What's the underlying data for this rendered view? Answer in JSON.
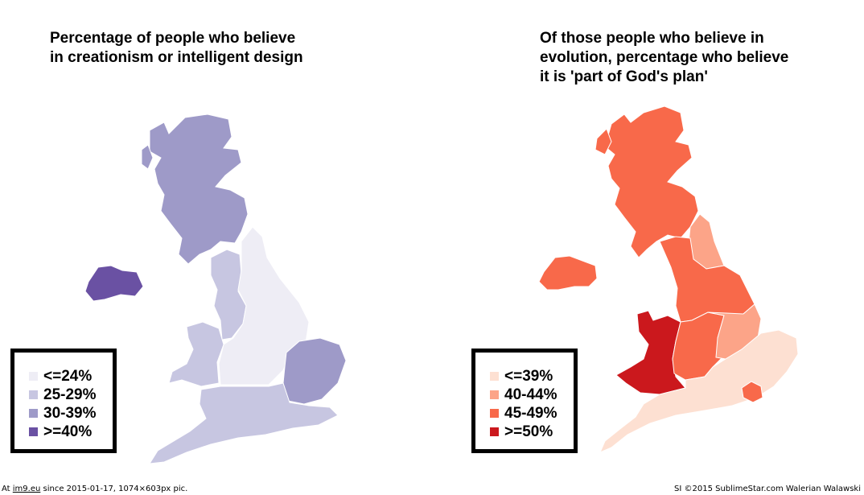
{
  "left_map": {
    "title": "Percentage of people who believe\nin creationism or intelligent design",
    "legend": [
      {
        "label": "<=24%",
        "color": "#eeedf5"
      },
      {
        "label": "25-29%",
        "color": "#c7c6e1"
      },
      {
        "label": "30-39%",
        "color": "#9e9ac8"
      },
      {
        "label": ">=40%",
        "color": "#6a51a3"
      }
    ],
    "regions": {
      "scotland": "30-39%",
      "northern_ireland": ">=40%",
      "north_west": "25-29%",
      "wales": "25-29%",
      "north_east_yorkshire_midlands": "<=24%",
      "east_anglia": "30-39%",
      "south": "25-29%"
    }
  },
  "right_map": {
    "title": "Of those people who believe in\nevolution, percentage who believe\nit is 'part of God's plan'",
    "legend": [
      {
        "label": "<=39%",
        "color": "#fde0d2"
      },
      {
        "label": "40-44%",
        "color": "#fca488"
      },
      {
        "label": "45-49%",
        "color": "#f8694a"
      },
      {
        "label": ">=50%",
        "color": "#cb181d"
      }
    ],
    "regions": {
      "scotland": "45-49%",
      "northern_ireland": "45-49%",
      "north_east": "40-44%",
      "north_west_yorkshire": "45-49%",
      "wales": ">=50%",
      "midlands": "45-49%",
      "east_anglia": "40-44%",
      "london": "45-49%",
      "south": "<=39%"
    }
  },
  "footer": {
    "left_prefix": "At",
    "left_link": "im9.eu",
    "left_suffix": "since 2015-01-17, 1074×603px pic.",
    "right": "SI ©2015 SublimeStar.com Walerian Walawski"
  }
}
